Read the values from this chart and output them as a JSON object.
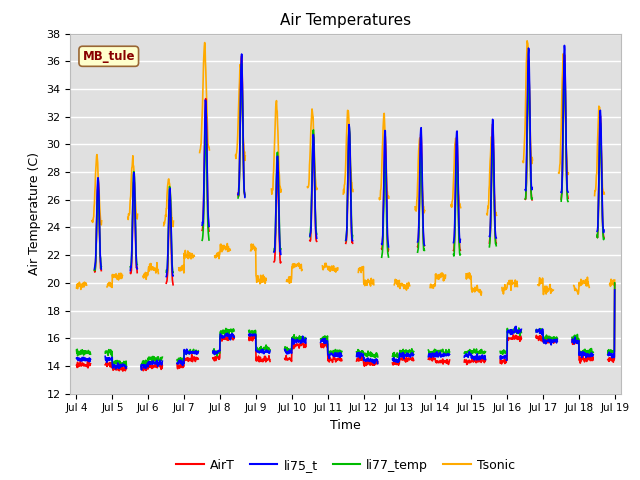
{
  "title": "Air Temperatures",
  "xlabel": "Time",
  "ylabel": "Air Temperature (C)",
  "ylim": [
    12,
    38
  ],
  "xlim": [
    3.83,
    19.17
  ],
  "xticks": [
    4,
    5,
    6,
    7,
    8,
    9,
    10,
    11,
    12,
    13,
    14,
    15,
    16,
    17,
    18,
    19
  ],
  "xticklabels": [
    "Jul 4",
    "Jul 5",
    "Jul 6",
    "Jul 7",
    "Jul 8",
    "Jul 9",
    "Jul 10",
    "Jul 11",
    "Jul 12",
    "Jul 13",
    "Jul 14",
    "Jul 15",
    "Jul 16",
    "Jul 17",
    "Jul 18",
    "Jul 19"
  ],
  "yticks": [
    12,
    14,
    16,
    18,
    20,
    22,
    24,
    26,
    28,
    30,
    32,
    34,
    36,
    38
  ],
  "colors": {
    "AirT": "#ff0000",
    "li75_t": "#0000ff",
    "li77_temp": "#00bb00",
    "Tsonic": "#ffaa00"
  },
  "legend_label": "MB_tule",
  "legend_box_facecolor": "#ffffcc",
  "legend_box_edgecolor": "#996633",
  "plot_bg": "#e0e0e0",
  "fig_bg": "#ffffff",
  "linewidth": 1.2,
  "grid_color": "#ffffff",
  "grid_lw": 1.0
}
